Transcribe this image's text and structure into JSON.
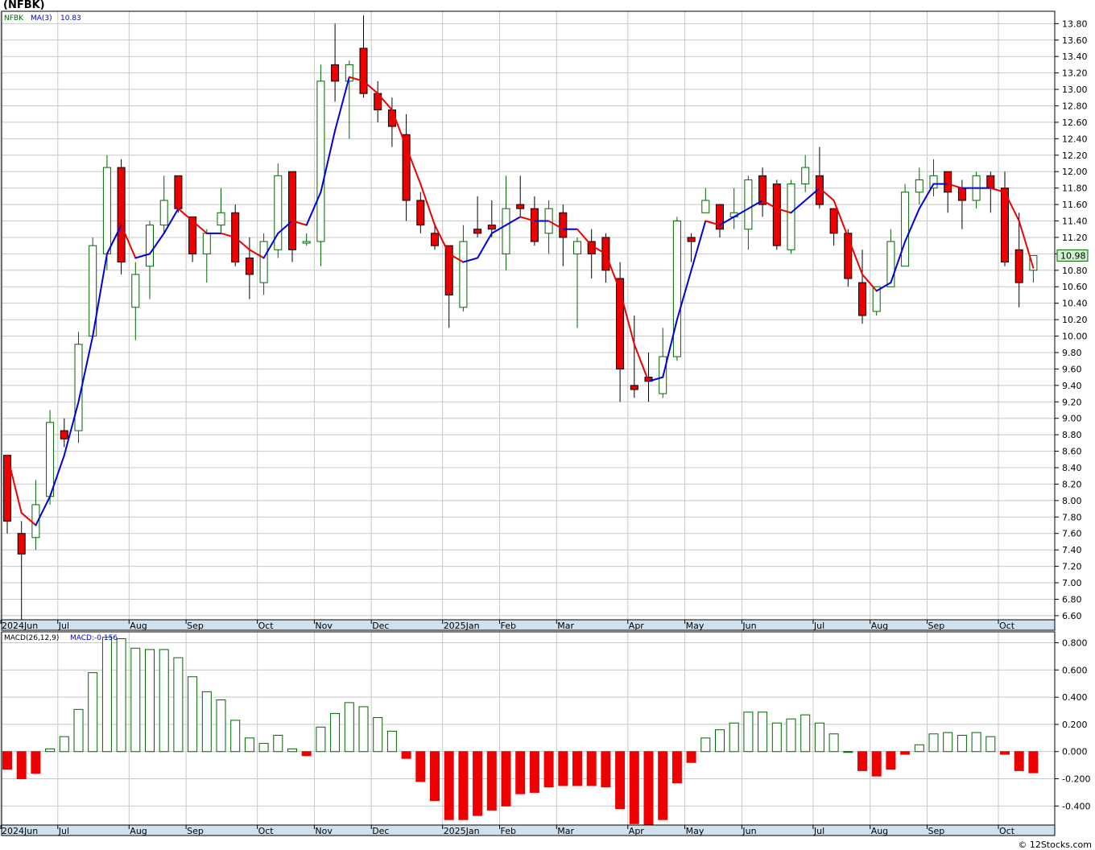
{
  "title": "(NFBK)",
  "footer": "© 12Stocks.com",
  "chart_data": [
    {
      "type": "candlestick",
      "legend": {
        "symbol": "NFBK",
        "ma_label": "MA(3)",
        "ma_value": "10.83"
      },
      "last_price_label": "10.98",
      "ylim": [
        6.55,
        13.95
      ],
      "y_ticks": [
        "6.60",
        "6.80",
        "7.00",
        "7.20",
        "7.40",
        "7.60",
        "7.80",
        "8.00",
        "8.20",
        "8.40",
        "8.60",
        "8.80",
        "9.00",
        "9.20",
        "9.40",
        "9.60",
        "9.80",
        "10.00",
        "10.20",
        "10.40",
        "10.60",
        "10.80",
        "11.00",
        "11.20",
        "11.40",
        "11.60",
        "11.80",
        "12.00",
        "12.20",
        "12.40",
        "12.60",
        "12.80",
        "13.00",
        "13.20",
        "13.40",
        "13.60",
        "13.80"
      ],
      "x_labels": [
        {
          "label": "2024Jun",
          "week": 0
        },
        {
          "label": "Jul",
          "week": 4
        },
        {
          "label": "Aug",
          "week": 9
        },
        {
          "label": "Sep",
          "week": 13
        },
        {
          "label": "Oct",
          "week": 18
        },
        {
          "label": "Nov",
          "week": 22
        },
        {
          "label": "Dec",
          "week": 26
        },
        {
          "label": "2025Jan",
          "week": 31
        },
        {
          "label": "Feb",
          "week": 35
        },
        {
          "label": "Mar",
          "week": 39
        },
        {
          "label": "Apr",
          "week": 44
        },
        {
          "label": "May",
          "week": 48
        },
        {
          "label": "Jun",
          "week": 52
        },
        {
          "label": "Jul",
          "week": 57
        },
        {
          "label": "Aug",
          "week": 61
        },
        {
          "label": "Sep",
          "week": 65
        },
        {
          "label": "Oct",
          "week": 70
        }
      ],
      "candles": [
        {
          "o": 8.55,
          "h": 8.55,
          "l": 7.6,
          "c": 7.75
        },
        {
          "o": 7.6,
          "h": 7.75,
          "l": 6.55,
          "c": 7.35
        },
        {
          "o": 7.55,
          "h": 8.25,
          "l": 7.4,
          "c": 7.95
        },
        {
          "o": 8.05,
          "h": 9.1,
          "l": 7.95,
          "c": 8.95
        },
        {
          "o": 8.85,
          "h": 9.0,
          "l": 8.65,
          "c": 8.75
        },
        {
          "o": 8.85,
          "h": 10.05,
          "l": 8.7,
          "c": 9.9
        },
        {
          "o": 10.0,
          "h": 11.2,
          "l": 10.0,
          "c": 11.1
        },
        {
          "o": 11.0,
          "h": 12.2,
          "l": 10.8,
          "c": 12.05
        },
        {
          "o": 12.05,
          "h": 12.15,
          "l": 10.75,
          "c": 10.9
        },
        {
          "o": 10.35,
          "h": 10.9,
          "l": 9.95,
          "c": 10.75
        },
        {
          "o": 10.85,
          "h": 11.4,
          "l": 10.45,
          "c": 11.35
        },
        {
          "o": 11.35,
          "h": 11.95,
          "l": 11.25,
          "c": 11.65
        },
        {
          "o": 11.95,
          "h": 11.95,
          "l": 11.5,
          "c": 11.55
        },
        {
          "o": 11.45,
          "h": 11.45,
          "l": 10.9,
          "c": 11.0
        },
        {
          "o": 11.0,
          "h": 11.3,
          "l": 10.65,
          "c": 11.25
        },
        {
          "o": 11.35,
          "h": 11.8,
          "l": 11.25,
          "c": 11.5
        },
        {
          "o": 11.5,
          "h": 11.6,
          "l": 10.85,
          "c": 10.9
        },
        {
          "o": 10.95,
          "h": 11.2,
          "l": 10.45,
          "c": 10.75
        },
        {
          "o": 10.65,
          "h": 11.25,
          "l": 10.5,
          "c": 11.15
        },
        {
          "o": 11.05,
          "h": 12.1,
          "l": 10.95,
          "c": 11.95
        },
        {
          "o": 12.0,
          "h": 12.0,
          "l": 10.9,
          "c": 11.05
        },
        {
          "o": 11.15,
          "h": 11.25,
          "l": 11.1,
          "c": 11.15
        },
        {
          "o": 11.15,
          "h": 13.3,
          "l": 10.85,
          "c": 13.1
        },
        {
          "o": 13.3,
          "h": 13.8,
          "l": 12.85,
          "c": 13.1
        },
        {
          "o": 13.1,
          "h": 13.35,
          "l": 12.4,
          "c": 13.3
        },
        {
          "o": 13.5,
          "h": 13.9,
          "l": 12.9,
          "c": 12.95
        },
        {
          "o": 12.95,
          "h": 13.1,
          "l": 12.6,
          "c": 12.75
        },
        {
          "o": 12.75,
          "h": 12.9,
          "l": 12.3,
          "c": 12.55
        },
        {
          "o": 12.45,
          "h": 12.7,
          "l": 11.4,
          "c": 11.65
        },
        {
          "o": 11.65,
          "h": 11.75,
          "l": 11.25,
          "c": 11.35
        },
        {
          "o": 11.25,
          "h": 11.35,
          "l": 11.05,
          "c": 11.1
        },
        {
          "o": 11.1,
          "h": 11.1,
          "l": 10.1,
          "c": 10.5
        },
        {
          "o": 10.35,
          "h": 11.35,
          "l": 10.3,
          "c": 11.15
        },
        {
          "o": 11.3,
          "h": 11.7,
          "l": 11.2,
          "c": 11.25
        },
        {
          "o": 11.35,
          "h": 11.65,
          "l": 11.2,
          "c": 11.3
        },
        {
          "o": 11.0,
          "h": 11.95,
          "l": 10.8,
          "c": 11.55
        },
        {
          "o": 11.6,
          "h": 11.95,
          "l": 11.45,
          "c": 11.55
        },
        {
          "o": 11.55,
          "h": 11.7,
          "l": 11.1,
          "c": 11.15
        },
        {
          "o": 11.25,
          "h": 11.65,
          "l": 11.0,
          "c": 11.55
        },
        {
          "o": 11.5,
          "h": 11.6,
          "l": 10.85,
          "c": 11.2
        },
        {
          "o": 11.0,
          "h": 11.2,
          "l": 10.1,
          "c": 11.15
        },
        {
          "o": 11.15,
          "h": 11.3,
          "l": 10.7,
          "c": 11.0
        },
        {
          "o": 11.2,
          "h": 11.25,
          "l": 10.65,
          "c": 10.8
        },
        {
          "o": 10.7,
          "h": 10.9,
          "l": 9.2,
          "c": 9.6
        },
        {
          "o": 9.4,
          "h": 10.25,
          "l": 9.25,
          "c": 9.35
        },
        {
          "o": 9.5,
          "h": 9.8,
          "l": 9.2,
          "c": 9.45
        },
        {
          "o": 9.3,
          "h": 10.1,
          "l": 9.25,
          "c": 9.75
        },
        {
          "o": 9.75,
          "h": 11.45,
          "l": 9.7,
          "c": 11.4
        },
        {
          "o": 11.2,
          "h": 11.25,
          "l": 10.9,
          "c": 11.15
        },
        {
          "o": 11.5,
          "h": 11.8,
          "l": 11.5,
          "c": 11.65
        },
        {
          "o": 11.6,
          "h": 11.6,
          "l": 11.2,
          "c": 11.3
        },
        {
          "o": 11.45,
          "h": 11.8,
          "l": 11.3,
          "c": 11.5
        },
        {
          "o": 11.3,
          "h": 11.95,
          "l": 11.05,
          "c": 11.9
        },
        {
          "o": 11.95,
          "h": 12.05,
          "l": 11.45,
          "c": 11.6
        },
        {
          "o": 11.85,
          "h": 11.9,
          "l": 11.05,
          "c": 11.1
        },
        {
          "o": 11.05,
          "h": 11.9,
          "l": 11.0,
          "c": 11.85
        },
        {
          "o": 11.85,
          "h": 12.2,
          "l": 11.75,
          "c": 12.05
        },
        {
          "o": 11.95,
          "h": 12.3,
          "l": 11.55,
          "c": 11.6
        },
        {
          "o": 11.55,
          "h": 11.55,
          "l": 11.1,
          "c": 11.25
        },
        {
          "o": 11.25,
          "h": 11.3,
          "l": 10.6,
          "c": 10.7
        },
        {
          "o": 10.65,
          "h": 11.05,
          "l": 10.15,
          "c": 10.25
        },
        {
          "o": 10.3,
          "h": 10.6,
          "l": 10.25,
          "c": 10.6
        },
        {
          "o": 10.6,
          "h": 11.3,
          "l": 10.6,
          "c": 11.15
        },
        {
          "o": 10.85,
          "h": 11.85,
          "l": 10.85,
          "c": 11.75
        },
        {
          "o": 11.75,
          "h": 12.05,
          "l": 11.6,
          "c": 11.9
        },
        {
          "o": 11.8,
          "h": 12.15,
          "l": 11.7,
          "c": 11.95
        },
        {
          "o": 12.0,
          "h": 12.0,
          "l": 11.5,
          "c": 11.75
        },
        {
          "o": 11.8,
          "h": 11.9,
          "l": 11.3,
          "c": 11.65
        },
        {
          "o": 11.65,
          "h": 12.0,
          "l": 11.55,
          "c": 11.95
        },
        {
          "o": 11.95,
          "h": 12.0,
          "l": 11.5,
          "c": 11.8
        },
        {
          "o": 11.8,
          "h": 12.0,
          "l": 10.85,
          "c": 10.9
        },
        {
          "o": 11.05,
          "h": 11.5,
          "l": 10.35,
          "c": 10.65
        },
        {
          "o": 10.8,
          "h": 10.95,
          "l": 10.65,
          "c": 10.98
        }
      ],
      "ma": [
        8.55,
        7.85,
        7.7,
        8.05,
        8.55,
        9.2,
        10.0,
        11.0,
        11.35,
        10.95,
        11.0,
        11.25,
        11.55,
        11.4,
        11.25,
        11.25,
        11.2,
        11.05,
        10.95,
        11.25,
        11.4,
        11.35,
        11.75,
        12.5,
        13.15,
        13.1,
        12.95,
        12.75,
        12.3,
        11.85,
        11.35,
        11.0,
        10.9,
        10.95,
        11.25,
        11.35,
        11.45,
        11.4,
        11.4,
        11.3,
        11.3,
        11.1,
        11.0,
        10.55,
        9.9,
        9.45,
        9.5,
        10.2,
        10.8,
        11.4,
        11.35,
        11.45,
        11.55,
        11.65,
        11.55,
        11.5,
        11.65,
        11.8,
        11.65,
        11.2,
        10.75,
        10.55,
        10.65,
        11.15,
        11.55,
        11.85,
        11.85,
        11.8,
        11.8,
        11.8,
        11.75,
        11.4,
        10.83
      ],
      "ma_colors": {
        "up": "#0000dd",
        "down": "#ee0000"
      }
    },
    {
      "type": "histogram",
      "legend": {
        "label": "MACD(26,12,9)",
        "value_label": "MACD:-0.156"
      },
      "ylim": [
        -0.54,
        0.88
      ],
      "y_ticks": [
        "-0.400",
        "-0.200",
        "0.000",
        "0.200",
        "0.400",
        "0.600",
        "0.800"
      ],
      "x_labels": [
        {
          "label": "2024Jun",
          "week": 0
        },
        {
          "label": "Jul",
          "week": 4
        },
        {
          "label": "Aug",
          "week": 9
        },
        {
          "label": "Sep",
          "week": 13
        },
        {
          "label": "Oct",
          "week": 18
        },
        {
          "label": "Nov",
          "week": 22
        },
        {
          "label": "Dec",
          "week": 26
        },
        {
          "label": "2025Jan",
          "week": 31
        },
        {
          "label": "Feb",
          "week": 35
        },
        {
          "label": "Mar",
          "week": 39
        },
        {
          "label": "Apr",
          "week": 44
        },
        {
          "label": "May",
          "week": 48
        },
        {
          "label": "Jun",
          "week": 52
        },
        {
          "label": "Jul",
          "week": 57
        },
        {
          "label": "Aug",
          "week": 61
        },
        {
          "label": "Sep",
          "week": 65
        },
        {
          "label": "Oct",
          "week": 70
        }
      ],
      "values": [
        -0.13,
        -0.2,
        -0.16,
        0.02,
        0.11,
        0.31,
        0.58,
        0.84,
        0.83,
        0.76,
        0.75,
        0.75,
        0.69,
        0.55,
        0.44,
        0.38,
        0.23,
        0.1,
        0.06,
        0.12,
        0.02,
        -0.03,
        0.18,
        0.28,
        0.36,
        0.33,
        0.25,
        0.15,
        -0.05,
        -0.22,
        -0.36,
        -0.5,
        -0.5,
        -0.47,
        -0.43,
        -0.4,
        -0.31,
        -0.3,
        -0.26,
        -0.25,
        -0.25,
        -0.25,
        -0.26,
        -0.42,
        -0.53,
        -0.54,
        -0.5,
        -0.23,
        -0.08,
        0.1,
        0.16,
        0.21,
        0.29,
        0.29,
        0.21,
        0.24,
        0.27,
        0.21,
        0.13,
        0.0,
        -0.14,
        -0.18,
        -0.13,
        -0.02,
        0.05,
        0.13,
        0.14,
        0.12,
        0.14,
        0.11,
        -0.02,
        -0.14,
        -0.156
      ]
    }
  ],
  "colors": {
    "up_body": "#ffffff",
    "up_edge": "#006600",
    "down_body": "#ee0000",
    "down_edge": "#000000",
    "grid": "#c8c8c8",
    "axis_band": "#d0e0ec",
    "last_price_bg": "#d0f0d0",
    "last_price_edge": "#006600"
  }
}
